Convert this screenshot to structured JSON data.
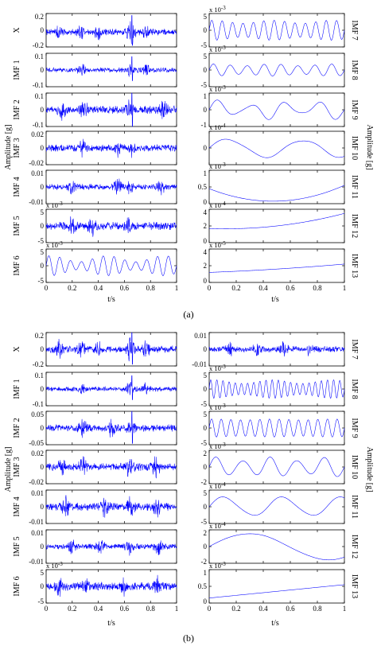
{
  "figure": {
    "panels": [
      {
        "label": "(a)",
        "left_ylabel": "Amplitude [g]",
        "right_ylabel": "Amplitude [g]",
        "left_xlabel": "t/s",
        "right_xlabel": "t/s"
      },
      {
        "label": "(b)",
        "left_ylabel": "Amplitude [g]",
        "right_ylabel": "Amplitude [g]",
        "left_xlabel": "t/s",
        "right_xlabel": "t/s"
      }
    ],
    "signal_color": "#0000ff"
  },
  "chart_data": [
    {
      "panel": "(a)",
      "column": "left",
      "type": "line",
      "xlim": [
        0,
        1
      ],
      "xticks": [
        "0",
        "0.2",
        "0.4",
        "0.6",
        "0.8",
        "1"
      ],
      "xlabel": "t/s",
      "ylabel": "Amplitude [g]",
      "subplots": [
        {
          "name": "X",
          "ylim": [
            -0.2,
            0.25
          ],
          "yticks": [
            "0.2",
            "0",
            "-0.2"
          ],
          "exponent": "",
          "signal": {
            "kind": "noise",
            "amp": 0.07,
            "freq": 70,
            "bursts": [
              0.1,
              0.27,
              0.4,
              0.64,
              0.66,
              0.77
            ],
            "spike": 0.66
          }
        },
        {
          "name": "IMF 1",
          "ylim": [
            -0.1,
            0.1
          ],
          "yticks": [
            "0.1",
            "0",
            "-0.1"
          ],
          "exponent": "",
          "signal": {
            "kind": "noise",
            "amp": 0.025,
            "freq": 90,
            "bursts": [
              0.27,
              0.64,
              0.77
            ],
            "spike": 0.66
          }
        },
        {
          "name": "IMF 2",
          "ylim": [
            -0.1,
            0.1
          ],
          "yticks": [
            "0.1",
            "0",
            "-0.1"
          ],
          "exponent": "",
          "signal": {
            "kind": "noise",
            "amp": 0.04,
            "freq": 60,
            "bursts": [
              0.12,
              0.29,
              0.64,
              0.9
            ],
            "spike": 0.66
          }
        },
        {
          "name": "IMF 3",
          "ylim": [
            -0.02,
            0.02
          ],
          "yticks": [
            "0.02",
            "0",
            "-0.02"
          ],
          "exponent": "",
          "signal": {
            "kind": "noise",
            "amp": 0.007,
            "freq": 45,
            "bursts": [
              0.28,
              0.55,
              0.65
            ],
            "spike": 0
          }
        },
        {
          "name": "IMF 4",
          "ylim": [
            -0.01,
            0.01
          ],
          "yticks": [
            "0.01",
            "0",
            "-0.01"
          ],
          "exponent": "",
          "signal": {
            "kind": "noise",
            "amp": 0.003,
            "freq": 35,
            "bursts": [
              0.2,
              0.55,
              0.64,
              0.88
            ],
            "spike": 0
          }
        },
        {
          "name": "IMF 5",
          "ylim": [
            -5,
            5
          ],
          "yticks": [
            "5",
            "0",
            "-5"
          ],
          "exponent": "x 10^-3",
          "signal": {
            "kind": "noise",
            "amp": 2.0,
            "freq": 22,
            "bursts": [
              0.2,
              0.35,
              0.63
            ],
            "spike": 0
          }
        },
        {
          "name": "IMF 6",
          "ylim": [
            -5,
            5
          ],
          "yticks": [
            "5",
            "0",
            "-5"
          ],
          "exponent": "x 10^-3",
          "signal": {
            "kind": "osc",
            "amp": 3.0,
            "freq": 12,
            "mod": 0.6
          }
        }
      ]
    },
    {
      "panel": "(a)",
      "column": "right",
      "type": "line",
      "xlim": [
        0,
        1
      ],
      "xticks": [
        "0",
        "0.2",
        "0.4",
        "0.6",
        "0.8",
        "1"
      ],
      "xlabel": "t/s",
      "ylabel": "Amplitude [g]",
      "subplots": [
        {
          "name": "IMF 7",
          "ylim": [
            -5,
            5
          ],
          "yticks": [
            "5",
            "0",
            "-5"
          ],
          "exponent": "x 10^-3",
          "signal": {
            "kind": "osc",
            "amp": 3.0,
            "freq": 13,
            "mod": 0.3
          }
        },
        {
          "name": "IMF 8",
          "ylim": [
            -5,
            5
          ],
          "yticks": [
            "5",
            "0",
            "-5"
          ],
          "exponent": "x 10^-3",
          "signal": {
            "kind": "osc",
            "amp": 1.8,
            "freq": 8,
            "mod": 0.3
          }
        },
        {
          "name": "IMF 9",
          "ylim": [
            -1,
            1
          ],
          "yticks": [
            "1",
            "0",
            "-1"
          ],
          "exponent": "x 10^-3",
          "signal": {
            "kind": "osc",
            "amp": 0.6,
            "freq": 4,
            "mod": 0.7
          }
        },
        {
          "name": "IMF 10",
          "ylim": [
            -4,
            4
          ],
          "yticks": [
            "",
            "0",
            ""
          ],
          "exponent": "x 10^-4",
          "signal": {
            "kind": "osc",
            "amp": 2.4,
            "freq": 1.8,
            "mod": 0.3
          }
        },
        {
          "name": "IMF 11",
          "ylim": [
            0,
            1
          ],
          "yticks": [
            "1",
            "0.5",
            "0"
          ],
          "exponent": "x 10^-3",
          "signal": {
            "kind": "poly",
            "coef": [
              0.45,
              -1.6,
              1.7
            ]
          }
        },
        {
          "name": "IMF 12",
          "ylim": [
            0,
            4
          ],
          "yticks": [
            "4",
            "2",
            "0"
          ],
          "exponent": "x 10^-4",
          "signal": {
            "kind": "poly",
            "coef": [
              1.7,
              -0.6,
              2.4
            ]
          }
        },
        {
          "name": "IMF 13",
          "ylim": [
            0,
            4
          ],
          "yticks": [
            "4",
            "2",
            "0"
          ],
          "exponent": "x 10^-5",
          "signal": {
            "kind": "poly",
            "coef": [
              1.2,
              0.6,
              0.4
            ]
          }
        }
      ]
    },
    {
      "panel": "(b)",
      "column": "left",
      "type": "line",
      "xlim": [
        0,
        1
      ],
      "xticks": [
        "0",
        "0.2",
        "0.4",
        "0.6",
        "0.8",
        "1"
      ],
      "xlabel": "t/s",
      "ylabel": "Amplitude [g]",
      "subplots": [
        {
          "name": "X",
          "ylim": [
            -0.2,
            0.2
          ],
          "yticks": [
            "0.2",
            "0",
            "-0.2"
          ],
          "exponent": "",
          "signal": {
            "kind": "noise",
            "amp": 0.07,
            "freq": 70,
            "bursts": [
              0.1,
              0.27,
              0.4,
              0.64,
              0.66,
              0.77
            ],
            "spike": 0.66
          }
        },
        {
          "name": "IMF 1",
          "ylim": [
            -0.1,
            0.1
          ],
          "yticks": [
            "0.1",
            "0",
            "-0.1"
          ],
          "exponent": "",
          "signal": {
            "kind": "noise",
            "amp": 0.025,
            "freq": 90,
            "bursts": [
              0.27,
              0.64,
              0.77
            ],
            "spike": 0.66
          }
        },
        {
          "name": "IMF 2",
          "ylim": [
            -0.05,
            0.05
          ],
          "yticks": [
            "0.05",
            "0",
            "-0.05"
          ],
          "exponent": "",
          "signal": {
            "kind": "noise",
            "amp": 0.018,
            "freq": 60,
            "bursts": [
              0.28,
              0.5,
              0.65
            ],
            "spike": 0.66
          }
        },
        {
          "name": "IMF 3",
          "ylim": [
            -0.02,
            0.02
          ],
          "yticks": [
            "0.02",
            "0",
            "-0.02"
          ],
          "exponent": "",
          "signal": {
            "kind": "noise",
            "amp": 0.008,
            "freq": 45,
            "bursts": [
              0.12,
              0.28,
              0.64,
              0.84
            ],
            "spike": 0
          }
        },
        {
          "name": "IMF 4",
          "ylim": [
            -0.01,
            0.01
          ],
          "yticks": [
            "0.01",
            "0",
            "-0.01"
          ],
          "exponent": "",
          "signal": {
            "kind": "noise",
            "amp": 0.004,
            "freq": 35,
            "bursts": [
              0.15,
              0.45,
              0.65,
              0.85
            ],
            "spike": 0
          }
        },
        {
          "name": "IMF 5",
          "ylim": [
            -0.01,
            0.01
          ],
          "yticks": [
            "0.01",
            "0",
            "-0.01"
          ],
          "exponent": "",
          "signal": {
            "kind": "noise",
            "amp": 0.003,
            "freq": 28,
            "bursts": [
              0.2,
              0.42,
              0.64,
              0.86
            ],
            "spike": 0
          }
        },
        {
          "name": "IMF 6",
          "ylim": [
            -5,
            5
          ],
          "yticks": [
            "5",
            "0",
            "-5"
          ],
          "exponent": "x 10^-3",
          "signal": {
            "kind": "noise",
            "amp": 2.0,
            "freq": 24,
            "bursts": [
              0.1,
              0.3,
              0.6,
              0.85
            ],
            "spike": 0
          }
        }
      ]
    },
    {
      "panel": "(b)",
      "column": "right",
      "type": "line",
      "xlim": [
        0,
        1
      ],
      "xticks": [
        "0",
        "0.2",
        "0.4",
        "0.6",
        "0.8",
        "1"
      ],
      "xlabel": "t/s",
      "ylabel": "Amplitude [g]",
      "subplots": [
        {
          "name": "IMF 7",
          "ylim": [
            -0.01,
            0.01
          ],
          "yticks": [
            "0.01",
            "0",
            "-0.01"
          ],
          "exponent": "",
          "signal": {
            "kind": "noise",
            "amp": 0.003,
            "freq": 30,
            "bursts": [
              0.15,
              0.35,
              0.55,
              0.75
            ],
            "spike": 0
          }
        },
        {
          "name": "IMF 8",
          "ylim": [
            -5,
            5
          ],
          "yticks": [
            "5",
            "0",
            "-5"
          ],
          "exponent": "x 10^-3",
          "signal": {
            "kind": "osc",
            "amp": 2.8,
            "freq": 22,
            "mod": 0.4
          }
        },
        {
          "name": "IMF 9",
          "ylim": [
            -5,
            5
          ],
          "yticks": [
            "5",
            "0",
            "-5"
          ],
          "exponent": "x 10^-3",
          "signal": {
            "kind": "osc",
            "amp": 2.7,
            "freq": 14,
            "mod": 0.1
          }
        },
        {
          "name": "IMF 10",
          "ylim": [
            -2,
            2
          ],
          "yticks": [
            "2",
            "0",
            "-2"
          ],
          "exponent": "x 10^-3",
          "signal": {
            "kind": "osc",
            "amp": 1.2,
            "freq": 5,
            "mod": 0.4
          }
        },
        {
          "name": "IMF 11",
          "ylim": [
            -5,
            5
          ],
          "yticks": [
            "5",
            "0",
            "-5"
          ],
          "exponent": "x 10^-4",
          "signal": {
            "kind": "osc",
            "amp": 3.2,
            "freq": 2.3,
            "mod": 0.3
          }
        },
        {
          "name": "IMF 12",
          "ylim": [
            -2,
            2
          ],
          "yticks": [
            "2",
            "0",
            "-2"
          ],
          "exponent": "x 10^-4",
          "signal": {
            "kind": "osc",
            "amp": 1.6,
            "freq": 0.85,
            "mod": 0.05
          }
        },
        {
          "name": "IMF 13",
          "ylim": [
            0,
            1
          ],
          "yticks": [
            "1",
            "0.5",
            "0"
          ],
          "exponent": "x 10^-3",
          "signal": {
            "kind": "poly",
            "coef": [
              0.15,
              0.4,
              0.0
            ]
          }
        }
      ]
    }
  ]
}
